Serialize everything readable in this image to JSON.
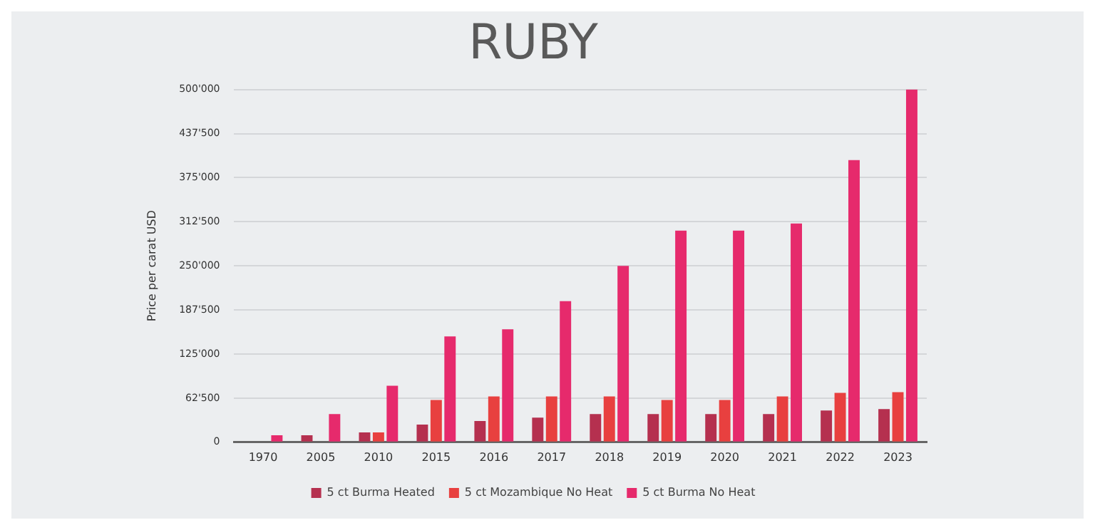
{
  "chart_data": {
    "type": "bar",
    "title": "RUBY",
    "ylabel": "Price per carat USD",
    "categories": [
      "1970",
      "2005",
      "2010",
      "2015",
      "2016",
      "2017",
      "2018",
      "2019",
      "2020",
      "2021",
      "2022",
      "2023"
    ],
    "series": [
      {
        "name": "5 ct Burma Heated",
        "color": "#b5304f",
        "values": [
          null,
          10000,
          14000,
          25000,
          30000,
          35000,
          40000,
          40000,
          40000,
          40000,
          45000,
          47000
        ]
      },
      {
        "name": "5 ct Mozambique No Heat",
        "color": "#e8403f",
        "values": [
          null,
          null,
          14000,
          60000,
          65000,
          65000,
          65000,
          60000,
          60000,
          65000,
          70000,
          71000
        ]
      },
      {
        "name": "5 ct Burma No Heat",
        "color": "#e62a6c",
        "values": [
          10000,
          40000,
          80000,
          150000,
          160000,
          200000,
          250000,
          300000,
          300000,
          310000,
          400000,
          500000
        ]
      }
    ],
    "ylim": [
      0,
      500000
    ],
    "yticks": [
      0,
      {
        "value": 62500,
        "label": "62'500"
      },
      {
        "value": 125000,
        "label": "125'000"
      },
      {
        "value": 187500,
        "label": "187'500"
      },
      {
        "value": 250000,
        "label": "250'000"
      },
      {
        "value": 312500,
        "label": "312'500"
      },
      {
        "value": 375000,
        "label": "375'000"
      },
      {
        "value": 437500,
        "label": "437'500"
      },
      {
        "value": 500000,
        "label": "500'000"
      }
    ],
    "grid": "y",
    "legend": "bottom"
  }
}
